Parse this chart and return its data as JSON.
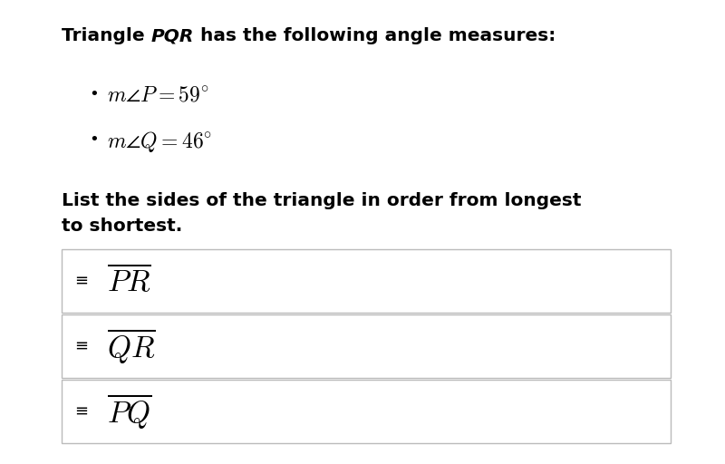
{
  "title_part1": "Triangle ",
  "title_italic": "PQR",
  "title_part2": " has the following angle measures:",
  "bullet1_math": "$m\\angle P = 59^{\\circ}$",
  "bullet2_math": "$m\\angle Q = 46^{\\circ}$",
  "instruction_line1": "List the sides of the triangle in order from longest",
  "instruction_line2": "to shortest.",
  "answer1": "$\\overline{PR}$",
  "answer2": "$\\overline{QR}$",
  "answer3": "$\\overline{PQ}$",
  "background_color": "#ffffff",
  "text_color": "#000000",
  "box_edge_color": "#bbbbbb",
  "title_fontsize": 14.5,
  "bullet_fontsize": 17,
  "instruction_fontsize": 14.5,
  "answer_fontsize": 24,
  "hamburger_fontsize": 13
}
